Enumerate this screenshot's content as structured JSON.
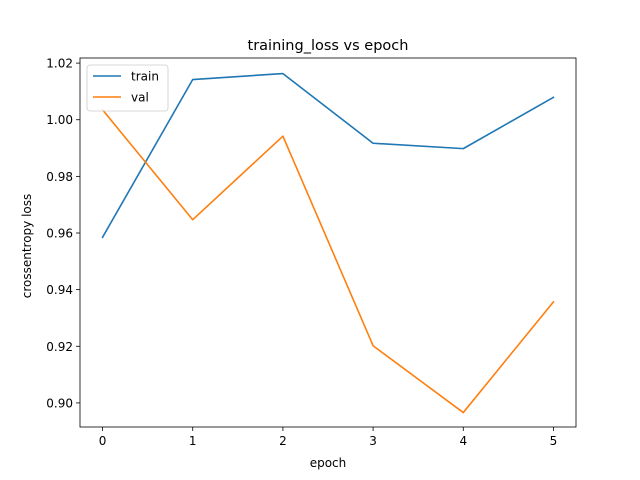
{
  "chart_data": {
    "type": "line",
    "title": "training_loss vs epoch",
    "xlabel": "epoch",
    "ylabel": "crossentropy loss",
    "x": [
      0,
      1,
      2,
      3,
      4,
      5
    ],
    "xlim": [
      -0.25,
      5.25
    ],
    "ylim": [
      0.8915,
      1.0218
    ],
    "xticks": [
      "0",
      "1",
      "2",
      "3",
      "4",
      "5"
    ],
    "yticks": [
      "0.90",
      "0.92",
      "0.94",
      "0.96",
      "0.98",
      "1.00",
      "1.02"
    ],
    "grid": false,
    "legend_position": "top-left",
    "series": [
      {
        "name": "train",
        "color": "#1f77b4",
        "values": [
          0.9585,
          1.0142,
          1.0163,
          0.9917,
          0.9898,
          1.0079
        ]
      },
      {
        "name": "val",
        "color": "#ff7f0e",
        "values": [
          1.0035,
          0.9647,
          0.9942,
          0.9202,
          0.8966,
          0.9357
        ]
      }
    ]
  }
}
